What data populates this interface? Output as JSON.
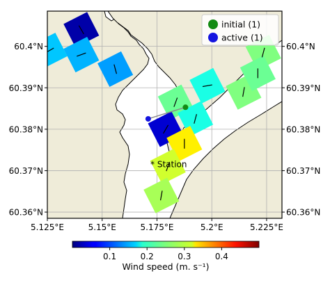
{
  "chart_data": {
    "type": "map-scatter",
    "projection": "lon-lat",
    "xlim": [
      5.125,
      5.232
    ],
    "ylim": [
      60.3585,
      60.4085
    ],
    "x_ticks": [
      {
        "value": 5.125,
        "label": "5.125°E"
      },
      {
        "value": 5.15,
        "label": "5.15°E"
      },
      {
        "value": 5.175,
        "label": "5.175°E"
      },
      {
        "value": 5.2,
        "label": "5.2°E"
      },
      {
        "value": 5.225,
        "label": "5.225°E"
      }
    ],
    "y_ticks": [
      {
        "value": 60.36,
        "label": "60.36°N"
      },
      {
        "value": 60.37,
        "label": "60.37°N"
      },
      {
        "value": 60.38,
        "label": "60.38°N"
      },
      {
        "value": 60.39,
        "label": "60.39°N"
      },
      {
        "value": 60.4,
        "label": "60.4°N"
      }
    ],
    "grid": true,
    "land_color": "#efecd9",
    "water_color": "#ffffff",
    "cells": [
      {
        "lon": 5.1405,
        "lat": 60.404,
        "speed": 0.02,
        "dir": 330
      },
      {
        "lon": 5.126,
        "lat": 60.399,
        "speed": 0.16,
        "dir": 60
      },
      {
        "lon": 5.1405,
        "lat": 60.398,
        "speed": 0.15,
        "dir": 70
      },
      {
        "lon": 5.156,
        "lat": 60.3945,
        "speed": 0.14,
        "dir": 345
      },
      {
        "lon": 5.1835,
        "lat": 60.3865,
        "speed": 0.24,
        "dir": 20
      },
      {
        "lon": 5.198,
        "lat": 60.3905,
        "speed": 0.2,
        "dir": 80
      },
      {
        "lon": 5.2145,
        "lat": 60.389,
        "speed": 0.25,
        "dir": 10
      },
      {
        "lon": 5.2235,
        "lat": 60.3985,
        "speed": 0.25,
        "dir": 15
      },
      {
        "lon": 5.221,
        "lat": 60.3935,
        "speed": 0.24,
        "dir": 0
      },
      {
        "lon": 5.179,
        "lat": 60.38,
        "speed": 0.04,
        "dir": 30
      },
      {
        "lon": 5.1925,
        "lat": 60.3825,
        "speed": 0.2,
        "dir": 15
      },
      {
        "lon": 5.1875,
        "lat": 60.3765,
        "speed": 0.32,
        "dir": 0
      },
      {
        "lon": 5.18,
        "lat": 60.371,
        "speed": 0.29,
        "dir": 20
      },
      {
        "lon": 5.177,
        "lat": 60.364,
        "speed": 0.27,
        "dir": 10
      }
    ],
    "series": [
      {
        "name": "initial (1)",
        "color": "#138b13",
        "points": [
          {
            "lon": 5.188,
            "lat": 60.3853
          }
        ]
      },
      {
        "name": "active (1)",
        "color": "#1515e0",
        "points": [
          {
            "lon": 5.171,
            "lat": 60.3825
          }
        ]
      }
    ],
    "trajectory": {
      "color": "#8c8c8c",
      "points": [
        {
          "lon": 5.171,
          "lat": 60.3825
        },
        {
          "lon": 5.188,
          "lat": 60.3853
        }
      ]
    },
    "annotation": {
      "text": "* Station",
      "lon": 5.172,
      "lat": 60.3708
    },
    "legend": {
      "position": "top-right"
    },
    "colorbar": {
      "label": "Wind speed (m. s⁻¹)",
      "cmap": "jet",
      "vmin": 0.0,
      "vmax": 0.5,
      "ticks": [
        {
          "value": 0.1,
          "label": "0.1"
        },
        {
          "value": 0.2,
          "label": "0.2"
        },
        {
          "value": 0.3,
          "label": "0.3"
        },
        {
          "value": 0.4,
          "label": "0.4"
        }
      ]
    }
  }
}
